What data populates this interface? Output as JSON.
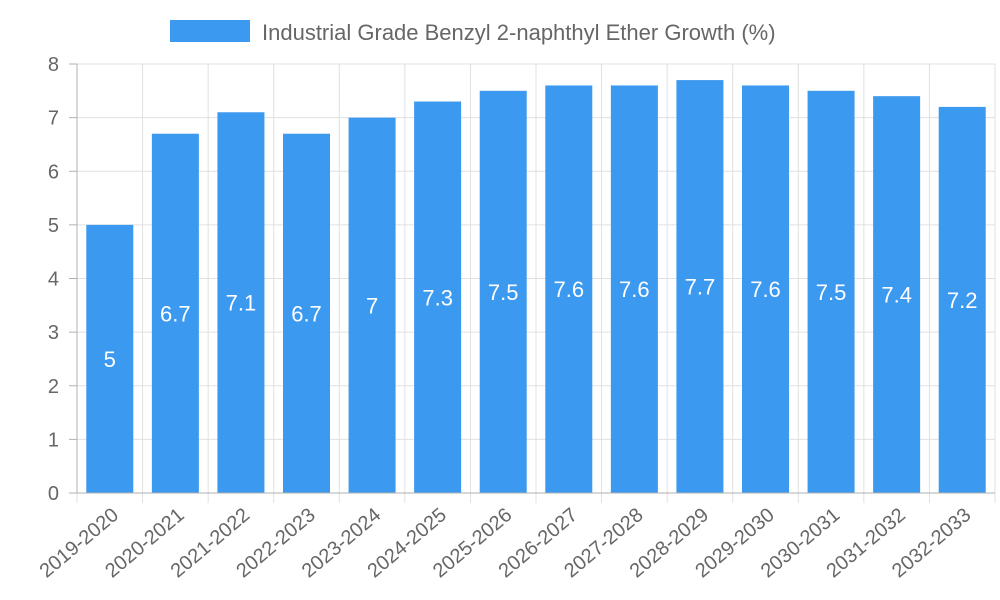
{
  "chart_data": {
    "type": "bar",
    "title": "",
    "xlabel": "",
    "ylabel": "",
    "categories": [
      "2019-2020",
      "2020-2021",
      "2021-2022",
      "2022-2023",
      "2023-2024",
      "2024-2025",
      "2025-2026",
      "2026-2027",
      "2027-2028",
      "2028-2029",
      "2029-2030",
      "2030-2031",
      "2031-2032",
      "2032-2033"
    ],
    "series": [
      {
        "name": "Industrial Grade Benzyl 2-naphthyl Ether Growth (%)",
        "values": [
          5,
          6.7,
          7.1,
          6.7,
          7,
          7.3,
          7.5,
          7.6,
          7.6,
          7.7,
          7.6,
          7.5,
          7.4,
          7.2
        ],
        "data_labels": [
          "5",
          "6.7",
          "7.1",
          "6.7",
          "7",
          "7.3",
          "7.5",
          "7.6",
          "7.6",
          "7.7",
          "7.6",
          "7.5",
          "7.4",
          "7.2"
        ],
        "color": "#3b99f0"
      }
    ],
    "ylim": [
      0,
      8
    ],
    "yticks": [
      "0",
      "1",
      "2",
      "3",
      "4",
      "5",
      "6",
      "7",
      "8"
    ],
    "grid": true,
    "legend_position": "top-center",
    "colors": {
      "bar": "#3b99f0",
      "grid": "#e0e0e0",
      "axis": "#b0b0b0",
      "text": "#666666",
      "label": "#ffffff"
    }
  }
}
